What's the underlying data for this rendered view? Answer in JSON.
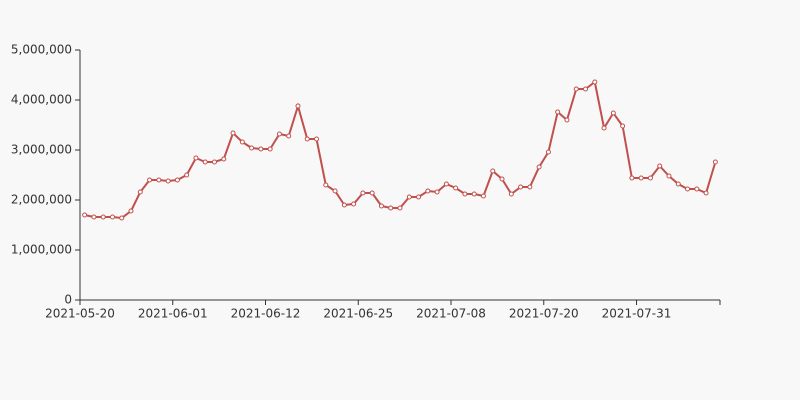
{
  "chart_data": {
    "type": "line",
    "color": "#c0504d",
    "categories": [
      "2021-05-20",
      null,
      null,
      null,
      null,
      null,
      null,
      null,
      null,
      null,
      "2021-06-01",
      null,
      null,
      null,
      null,
      null,
      null,
      null,
      null,
      null,
      "2021-06-12",
      null,
      null,
      null,
      null,
      null,
      null,
      null,
      null,
      null,
      "2021-06-25",
      null,
      null,
      null,
      null,
      null,
      null,
      null,
      null,
      null,
      "2021-07-08",
      null,
      null,
      null,
      null,
      null,
      null,
      null,
      null,
      null,
      "2021-07-20",
      null,
      null,
      null,
      null,
      null,
      null,
      null,
      null,
      null,
      "2021-07-31",
      null,
      null,
      null,
      null,
      null,
      null,
      null,
      null
    ],
    "values": [
      1700000,
      1660000,
      1660000,
      1660000,
      1640000,
      1780000,
      2160000,
      2400000,
      2400000,
      2380000,
      2400000,
      2500000,
      2840000,
      2760000,
      2760000,
      2820000,
      3340000,
      3160000,
      3040000,
      3020000,
      3020000,
      3320000,
      3280000,
      3880000,
      3220000,
      3220000,
      2300000,
      2180000,
      1900000,
      1920000,
      2140000,
      2140000,
      1880000,
      1840000,
      1840000,
      2060000,
      2060000,
      2180000,
      2160000,
      2320000,
      2240000,
      2120000,
      2120000,
      2080000,
      2580000,
      2420000,
      2120000,
      2260000,
      2260000,
      2660000,
      2960000,
      3760000,
      3600000,
      4220000,
      4220000,
      4360000,
      3440000,
      3740000,
      3480000,
      2440000,
      2440000,
      2440000,
      2680000,
      2480000,
      2320000,
      2220000,
      2220000,
      2140000,
      2760000
    ],
    "ylim": [
      0,
      5000000
    ],
    "yticks": [
      0,
      {
        "value": 1000000,
        "label": "1,000,000"
      },
      {
        "value": 2000000,
        "label": "2,000,000"
      },
      {
        "value": 3000000,
        "label": "3,000,000"
      },
      {
        "value": 4000000,
        "label": "4,000,000"
      },
      {
        "value": 5000000,
        "label": "5,000,000"
      }
    ]
  }
}
